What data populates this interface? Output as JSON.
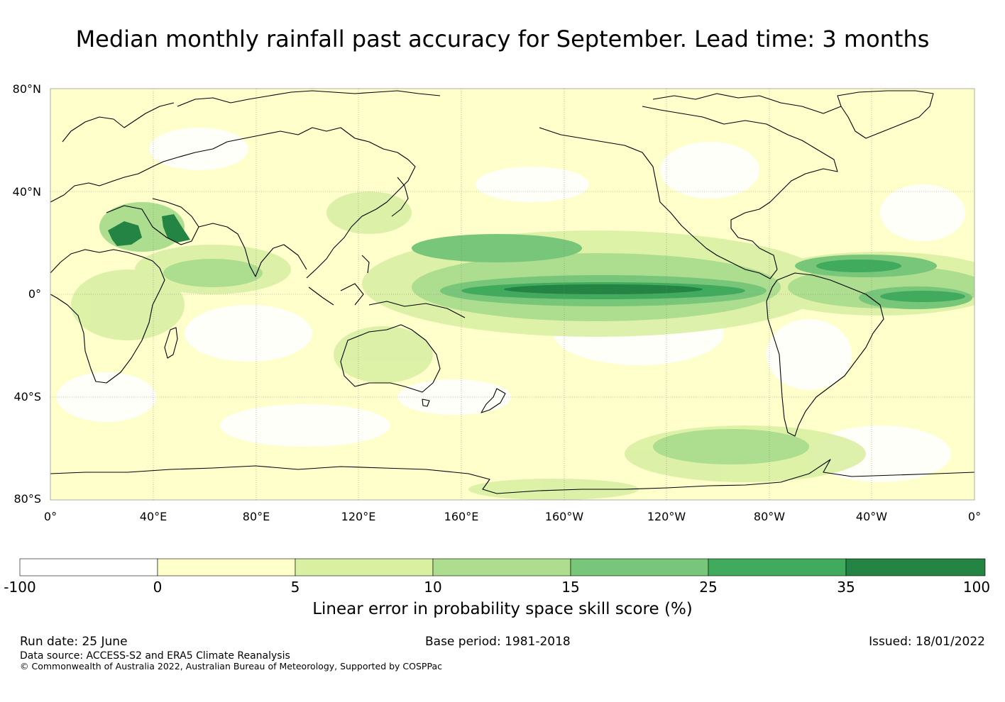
{
  "title": "Median monthly rainfall past accuracy for September. Lead time: 3 months",
  "map": {
    "lat_labels": [
      "80°N",
      "40°N",
      "0°",
      "40°S",
      "80°S"
    ],
    "lon_labels": [
      "0°",
      "40°E",
      "80°E",
      "120°E",
      "160°E",
      "160°W",
      "120°W",
      "80°W",
      "40°W",
      "0°"
    ]
  },
  "colorbar": {
    "title": "Linear error in probability space skill score (%)",
    "boundaries": [
      "-100",
      "0",
      "5",
      "10",
      "15",
      "25",
      "35",
      "100"
    ],
    "colors": [
      "#ffffff",
      "#ffffcc",
      "#d9f0a3",
      "#addd8e",
      "#78c679",
      "#41ab5d",
      "#238443"
    ]
  },
  "footer": {
    "run_date": "Run date: 25 June",
    "base_period": "Base period: 1981-2018",
    "issued": "Issued: 18/01/2022",
    "data_source": "Data source: ACCESS-S2 and ERA5 Climate Reanalysis",
    "copyright": "© Commonwealth of Australia 2022, Australian Bureau of Meteorology, Supported by COSPPac"
  }
}
